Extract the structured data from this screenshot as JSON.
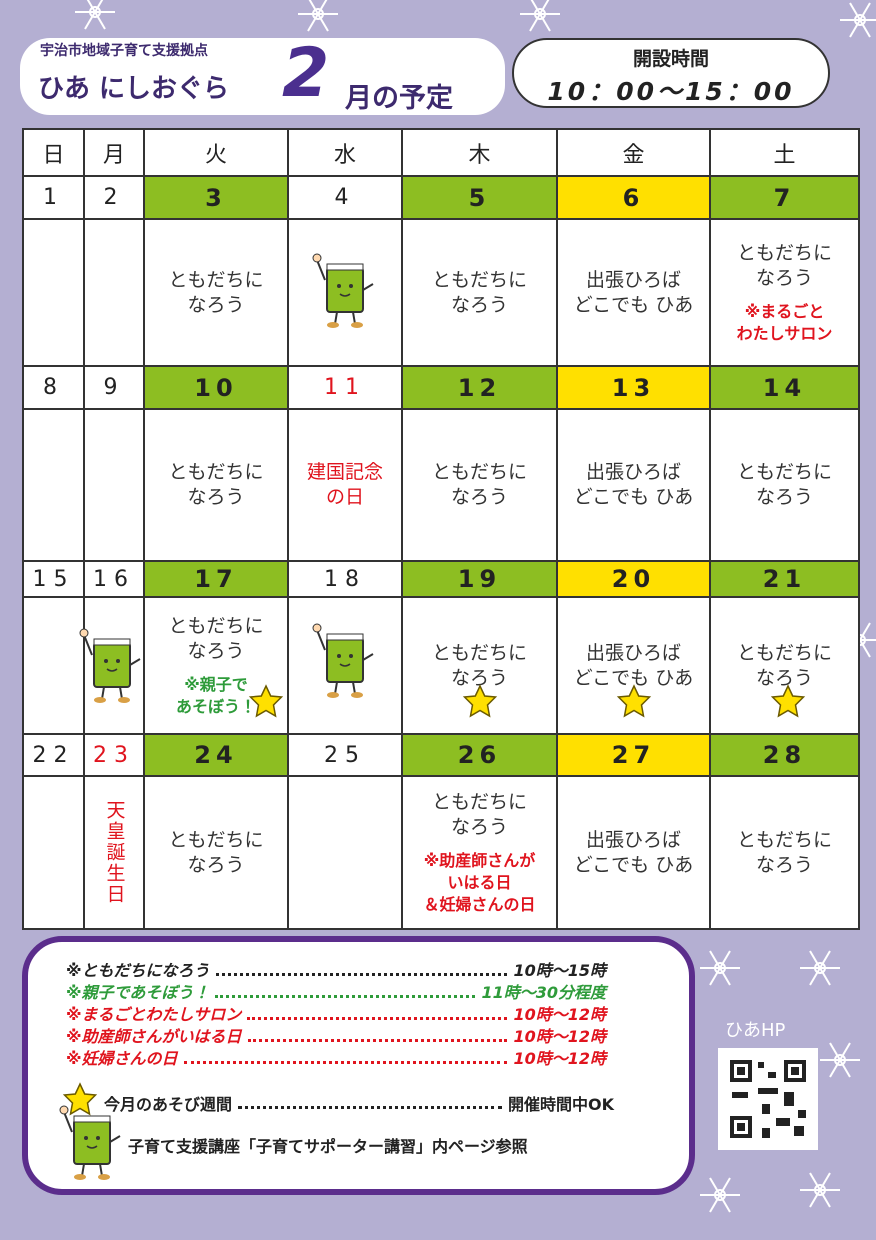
{
  "header": {
    "org": "宇治市地域子育て支援拠点",
    "name": "ひあ にしおぐら",
    "month": "2",
    "title": "月の予定"
  },
  "hours": {
    "label": "開設時間",
    "time": "10：00〜15：00"
  },
  "calendar": {
    "weekdays": [
      "日",
      "月",
      "火",
      "水",
      "木",
      "金",
      "土"
    ],
    "column_fills": [
      "#ffffff",
      "#ffffff",
      "#8dbe22",
      "#ffffff",
      "#8dbe22",
      "#ffe000",
      "#8dbe22"
    ],
    "weeks": [
      {
        "dates": [
          "1",
          "2",
          "3",
          "4",
          "5",
          "6",
          "7"
        ],
        "cells": [
          null,
          null,
          {
            "lines": [
              "ともだちに",
              "なろう"
            ]
          },
          null,
          {
            "lines": [
              "ともだちに",
              "なろう"
            ]
          },
          {
            "lines": [
              "出張ひろば",
              "どこでも ひあ"
            ]
          },
          {
            "lines": [
              "ともだちに",
              "なろう"
            ],
            "note": [
              "※まるごと",
              "わたしサロン"
            ],
            "note_color": "#e0141e"
          }
        ]
      },
      {
        "dates": [
          "8",
          "9",
          "10",
          "11",
          "12",
          "13",
          "14"
        ],
        "red_dates": [
          3
        ],
        "cells": [
          null,
          null,
          {
            "lines": [
              "ともだちに",
              "なろう"
            ]
          },
          {
            "lines": [
              "建国記念",
              "の日"
            ],
            "color": "#e0141e"
          },
          {
            "lines": [
              "ともだちに",
              "なろう"
            ]
          },
          {
            "lines": [
              "出張ひろば",
              "どこでも ひあ"
            ]
          },
          {
            "lines": [
              "ともだちに",
              "なろう"
            ]
          }
        ]
      },
      {
        "dates": [
          "15",
          "16",
          "17",
          "18",
          "19",
          "20",
          "21"
        ],
        "cells": [
          null,
          null,
          {
            "lines": [
              "ともだちに",
              "なろう"
            ],
            "note": [
              "※親子で",
              "あそぼう！"
            ],
            "note_color": "#2e9b3a"
          },
          null,
          {
            "lines": [
              "ともだちに",
              "なろう"
            ]
          },
          {
            "lines": [
              "出張ひろば",
              "どこでも ひあ"
            ]
          },
          {
            "lines": [
              "ともだちに",
              "なろう"
            ]
          }
        ]
      },
      {
        "dates": [
          "22",
          "23",
          "24",
          "25",
          "26",
          "27",
          "28"
        ],
        "red_dates": [
          1
        ],
        "cells": [
          null,
          {
            "lines": [
              "天皇誕生日"
            ],
            "color": "#e0141e",
            "vertical": true
          },
          {
            "lines": [
              "ともだちに",
              "なろう"
            ]
          },
          null,
          {
            "lines": [
              "ともだちに",
              "なろう"
            ],
            "note": [
              "※助産師さんが",
              "いはる日",
              "＆妊婦さんの日"
            ],
            "note_color": "#e0141e"
          },
          {
            "lines": [
              "出張ひろば",
              "どこでも ひあ"
            ]
          },
          {
            "lines": [
              "ともだちに",
              "なろう"
            ]
          }
        ]
      }
    ]
  },
  "legend": {
    "items": [
      {
        "name": "※ともだちになろう",
        "time": "10時～15時",
        "color": "#222222"
      },
      {
        "name": "※親子であそぼう！",
        "time": "11時～30分程度",
        "color": "#2e9b3a"
      },
      {
        "name": "※まるごとわたしサロン",
        "time": "10時～12時",
        "color": "#e0141e"
      },
      {
        "name": "※助産師さんがいはる日",
        "time": "10時～12時",
        "color": "#e0141e"
      },
      {
        "name": "※妊婦さんの日",
        "time": "10時～12時",
        "color": "#e0141e"
      }
    ],
    "star_note": "今月のあそび週間",
    "star_time": "開催時間中OK",
    "char_note": "子育て支援講座「子育てサポーター講習」内ページ参照"
  },
  "qr": {
    "label": "ひあHP"
  }
}
